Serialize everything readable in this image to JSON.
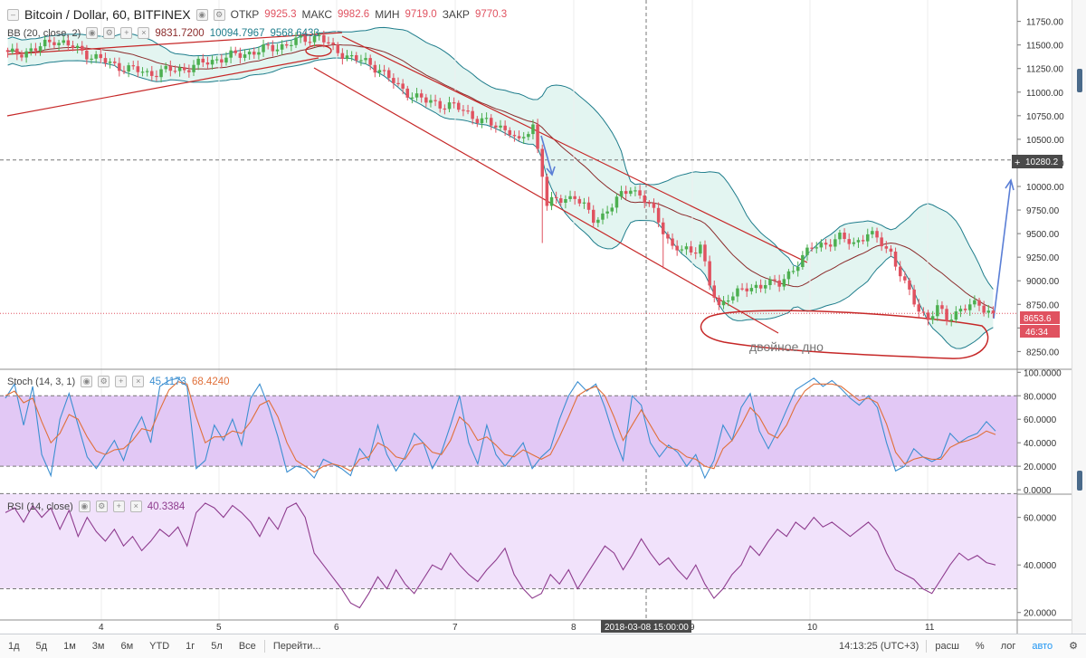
{
  "header": {
    "symbol": "Bitcoin / Dollar, 60, BITFINEX",
    "open_label": "ОТКР",
    "open_value": "9925.3",
    "high_label": "МАКС",
    "high_value": "9982.6",
    "low_label": "МИН",
    "low_value": "9719.0",
    "close_label": "ЗАКР",
    "close_value": "9770.3"
  },
  "bb_legend": {
    "label": "BB (20, close, 2)",
    "v1": "9831.7200",
    "v2": "10094.7967",
    "v3": "9568.6433"
  },
  "stoch_legend": {
    "label": "Stoch (14, 3, 1)",
    "v1": "45.1173",
    "v2": "68.4240"
  },
  "rsi_legend": {
    "label": "RSI (14, close)",
    "v1": "40.3384"
  },
  "crosshair": {
    "x_label": "2018-03-08 15:00:00",
    "price_label": "10280.2"
  },
  "current_price": {
    "value": "8653.6",
    "countdown": "46:34"
  },
  "annotation": "двойное дно",
  "toolbar": {
    "ranges": [
      "1д",
      "5д",
      "1м",
      "3м",
      "6м",
      "YTD",
      "1г",
      "5л",
      "Все"
    ],
    "goto": "Перейти...",
    "time": "14:13:25 (UTC+3)",
    "ext": "расш",
    "pct": "%",
    "log": "лог",
    "auto": "авто"
  },
  "colors": {
    "up": "#4caf50",
    "down": "#e05260",
    "bb": "#1f7d8c",
    "bb_mid": "#8b2b2b",
    "bb_fill": "#d9f2ec",
    "stoch_k": "#3c8fd1",
    "stoch_d": "#e0703a",
    "stoch_band": "#e2c8f5",
    "rsi": "#8e3c8e",
    "rsi_band": "#f1e2fb",
    "annot": "#c62828"
  },
  "chart_data": [
    {
      "type": "candlestick",
      "title": "Bitcoin / Dollar, 60, BITFINEX",
      "x_ticks": [
        "4",
        "5",
        "6",
        "7",
        "8",
        "9",
        "10",
        "11"
      ],
      "y_ticks": [
        8250,
        8500,
        8750,
        9000,
        9250,
        9500,
        9750,
        10000,
        10250,
        10500,
        10750,
        11000,
        11250,
        11500,
        11750
      ],
      "ylim": [
        8100,
        11900
      ],
      "anchors": [
        [
          0,
          11400
        ],
        [
          6,
          11450
        ],
        [
          10,
          11560
        ],
        [
          15,
          11450
        ],
        [
          22,
          11300
        ],
        [
          30,
          11200
        ],
        [
          38,
          11250
        ],
        [
          45,
          11350
        ],
        [
          52,
          11420
        ],
        [
          58,
          11480
        ],
        [
          63,
          11550
        ],
        [
          67,
          11600
        ],
        [
          70,
          11450
        ],
        [
          75,
          11350
        ],
        [
          80,
          11250
        ],
        [
          84,
          11050
        ],
        [
          90,
          10900
        ],
        [
          96,
          10850
        ],
        [
          100,
          10750
        ],
        [
          104,
          10650
        ],
        [
          108,
          10600
        ],
        [
          110,
          10450
        ],
        [
          113,
          10650
        ],
        [
          115,
          10150
        ],
        [
          116,
          9800
        ],
        [
          118,
          9850
        ],
        [
          122,
          9900
        ],
        [
          126,
          9650
        ],
        [
          128,
          9700
        ],
        [
          131,
          9850
        ],
        [
          134,
          10000
        ],
        [
          138,
          9800
        ],
        [
          141,
          9550
        ],
        [
          143,
          9350
        ],
        [
          147,
          9300
        ],
        [
          149,
          9400
        ],
        [
          151,
          8950
        ],
        [
          153,
          8700
        ],
        [
          155,
          8850
        ],
        [
          158,
          8900
        ],
        [
          160,
          8900
        ],
        [
          163,
          9000
        ],
        [
          166,
          8950
        ],
        [
          170,
          9200
        ],
        [
          173,
          9350
        ],
        [
          176,
          9400
        ],
        [
          179,
          9450
        ],
        [
          182,
          9400
        ],
        [
          185,
          9500
        ],
        [
          188,
          9400
        ],
        [
          190,
          9300
        ],
        [
          193,
          8950
        ],
        [
          196,
          8700
        ],
        [
          198,
          8600
        ],
        [
          200,
          8700
        ],
        [
          202,
          8600
        ],
        [
          205,
          8700
        ],
        [
          209,
          8750
        ],
        [
          212,
          8654
        ]
      ],
      "spikes": [
        [
          115,
          9400
        ],
        [
          141,
          9130
        ]
      ],
      "overlays": [
        {
          "name": "BB (20, close, 2)",
          "period": 20,
          "mult": 2
        }
      ]
    },
    {
      "type": "line",
      "title": "Stoch (14, 3, 1)",
      "y_ticks": [
        0,
        20,
        40,
        60,
        80,
        100
      ],
      "ylim": [
        -3,
        101
      ],
      "band": [
        20,
        80
      ],
      "series": [
        {
          "name": "%K",
          "values": [
            78,
            90,
            55,
            88,
            30,
            12,
            60,
            82,
            55,
            28,
            18,
            30,
            42,
            25,
            48,
            62,
            40,
            88,
            93,
            95,
            88,
            18,
            25,
            55,
            42,
            60,
            38,
            78,
            90,
            70,
            45,
            15,
            20,
            18,
            10,
            26,
            22,
            18,
            12,
            35,
            25,
            55,
            30,
            16,
            28,
            48,
            40,
            18,
            32,
            55,
            80,
            40,
            22,
            55,
            30,
            20,
            30,
            40,
            18,
            28,
            35,
            60,
            80,
            92,
            84,
            90,
            70,
            45,
            25,
            80,
            72,
            40,
            28,
            38,
            32,
            20,
            30,
            10,
            25,
            55,
            42,
            70,
            82,
            50,
            35,
            50,
            68,
            85,
            90,
            95,
            88,
            93,
            86,
            78,
            72,
            80,
            70,
            40,
            16,
            20,
            35,
            28,
            24,
            28,
            48,
            40,
            45,
            48,
            58,
            50
          ]
        },
        {
          "name": "%D",
          "values": [
            80,
            84,
            74,
            78,
            58,
            40,
            48,
            64,
            60,
            45,
            33,
            30,
            34,
            35,
            42,
            52,
            50,
            68,
            85,
            92,
            90,
            62,
            40,
            45,
            45,
            50,
            48,
            58,
            72,
            76,
            62,
            40,
            25,
            20,
            15,
            20,
            22,
            20,
            16,
            26,
            28,
            40,
            36,
            28,
            26,
            38,
            40,
            32,
            30,
            42,
            62,
            55,
            42,
            45,
            38,
            30,
            28,
            34,
            30,
            26,
            30,
            45,
            62,
            80,
            85,
            88,
            80,
            62,
            42,
            55,
            68,
            55,
            42,
            36,
            34,
            28,
            26,
            20,
            18,
            35,
            42,
            55,
            70,
            62,
            48,
            44,
            55,
            72,
            84,
            90,
            90,
            90,
            88,
            82,
            76,
            78,
            74,
            56,
            32,
            22,
            26,
            28,
            26,
            26,
            36,
            40,
            42,
            45,
            50,
            47
          ]
        }
      ]
    },
    {
      "type": "line",
      "title": "RSI (14, close)",
      "y_ticks": [
        20,
        40,
        60
      ],
      "ylim": [
        18,
        69
      ],
      "band": [
        30,
        70
      ],
      "series": [
        {
          "name": "RSI",
          "values": [
            62,
            64,
            58,
            65,
            60,
            64,
            55,
            63,
            52,
            60,
            54,
            50,
            55,
            48,
            52,
            46,
            50,
            55,
            52,
            56,
            48,
            62,
            66,
            64,
            60,
            65,
            62,
            58,
            52,
            60,
            55,
            64,
            66,
            60,
            45,
            40,
            35,
            30,
            24,
            22,
            28,
            35,
            30,
            38,
            32,
            28,
            34,
            40,
            38,
            45,
            40,
            36,
            33,
            38,
            42,
            47,
            36,
            30,
            26,
            28,
            36,
            32,
            38,
            30,
            36,
            42,
            48,
            45,
            38,
            44,
            51,
            45,
            40,
            43,
            38,
            34,
            40,
            32,
            26,
            30,
            36,
            40,
            48,
            44,
            50,
            55,
            52,
            58,
            55,
            60,
            56,
            58,
            55,
            52,
            55,
            58,
            54,
            45,
            38,
            36,
            34,
            30,
            28,
            34,
            40,
            45,
            42,
            44,
            41,
            40
          ]
        }
      ]
    }
  ]
}
